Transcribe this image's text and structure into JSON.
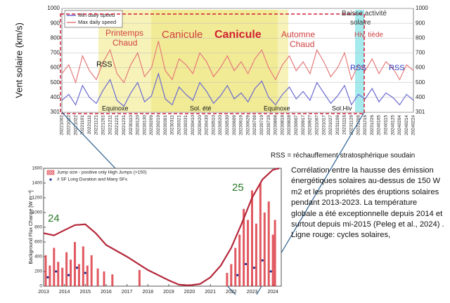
{
  "chart_data": [
    {
      "type": "line",
      "y_label": "Vent solaire (km/s)",
      "categories": [
        "20221002",
        "20221012",
        "20221022",
        "20221101",
        "20221111",
        "20221121",
        "20221201",
        "20221211",
        "20221221",
        "20221231",
        "20230110",
        "20230120",
        "20230130",
        "20230209",
        "20230219",
        "20230301",
        "20230311",
        "20230321",
        "20230331",
        "20230410",
        "20230420",
        "20230430",
        "20230510",
        "20230520",
        "20230530",
        "20230609",
        "20230619",
        "20230629",
        "20230709",
        "20230719",
        "20230729",
        "20230808",
        "20230818",
        "20230828",
        "20230907",
        "20230917",
        "20230927",
        "20231007",
        "20231017",
        "20231027",
        "20231106",
        "20231116",
        "20231126",
        "20231206",
        "20231216",
        "20231226",
        "20240105",
        "20240115",
        "20240125",
        "20240204",
        "20240214",
        "20240224"
      ],
      "series": [
        {
          "name": "Min daily speed",
          "color": "#6a6ad0",
          "values": [
            380,
            420,
            350,
            480,
            400,
            360,
            450,
            520,
            380,
            340,
            430,
            500,
            370,
            410,
            560,
            390,
            350,
            470,
            420,
            380,
            500,
            440,
            360,
            410,
            480,
            390,
            430,
            370,
            460,
            510,
            400,
            350,
            420,
            470,
            390,
            440,
            380,
            500,
            430,
            360,
            410,
            480,
            350,
            420,
            390,
            460,
            370,
            430,
            400,
            350,
            420,
            380
          ]
        },
        {
          "name": "Max daily speed",
          "color": "#e57a7a",
          "values": [
            560,
            620,
            500,
            680,
            580,
            520,
            640,
            720,
            560,
            500,
            620,
            700,
            540,
            600,
            780,
            580,
            520,
            660,
            620,
            560,
            700,
            640,
            540,
            600,
            680,
            580,
            640,
            560,
            660,
            720,
            600,
            520,
            620,
            680,
            580,
            640,
            560,
            720,
            640,
            540,
            600,
            700,
            520,
            620,
            580,
            660,
            560,
            640,
            600,
            520,
            620,
            580
          ]
        }
      ],
      "ylim": [
        300,
        1000
      ],
      "yticks": [
        301,
        400,
        500,
        600,
        700,
        800,
        900,
        1000
      ],
      "grid": true,
      "legend": "top-left",
      "annotations": [
        [
          "Printemps",
          "Chaud"
        ],
        [
          "Canicule"
        ],
        [
          "Canicule"
        ],
        [
          "Automne",
          "Chaud"
        ],
        [
          "Baisse activité",
          "solaire"
        ],
        [
          "Hiv. tiède"
        ],
        [
          "RSS"
        ],
        [
          "RSS"
        ],
        [
          "RSS"
        ],
        [
          "Equinoxe"
        ],
        [
          "Sol. été"
        ],
        [
          "Equinoxe"
        ],
        [
          "Sol.Hiv"
        ]
      ],
      "note": "RSS = réchauffement stratosphérique soudain"
    },
    {
      "type": "bar",
      "y_label": "Background Flux Change [W m⁻²]",
      "xlim": [
        2013,
        2024.4
      ],
      "xticks": [
        2013,
        2014,
        2015,
        2016,
        2017,
        2018,
        2019,
        2020,
        2021,
        2022,
        2023,
        2024
      ],
      "ylim": [
        0,
        1600
      ],
      "yticks": [
        0,
        200,
        400,
        600,
        800,
        1000,
        1200,
        1400,
        1600
      ],
      "legend": "top-left",
      "series": [
        {
          "name": "Jump size - positive only High Jumps (>150)",
          "type": "bar",
          "color": "#d9303a",
          "x": [
            2013.1,
            2013.3,
            2013.5,
            2013.7,
            2013.9,
            2014.1,
            2014.3,
            2014.5,
            2014.7,
            2014.9,
            2015.1,
            2015.3,
            2015.6,
            2015.9,
            2016.3,
            2017.6,
            2021.8,
            2022.0,
            2022.2,
            2022.4,
            2022.6,
            2022.8,
            2023.0,
            2023.2,
            2023.4,
            2023.6,
            2023.8,
            2024.0,
            2024.1
          ],
          "values": [
            420,
            280,
            520,
            330,
            250,
            460,
            360,
            600,
            300,
            540,
            280,
            420,
            240,
            200,
            160,
            220,
            180,
            300,
            520,
            700,
            1050,
            900,
            1300,
            850,
            1400,
            1000,
            1150,
            700,
            900
          ]
        },
        {
          "name": "# SF Long Duration and Many SFs",
          "type": "scatter",
          "color": "#1f2f8a",
          "x": [
            2013.2,
            2013.6,
            2014.2,
            2014.6,
            2015.0,
            2022.3,
            2022.7,
            2023.1,
            2023.5,
            2023.9
          ],
          "values": [
            120,
            200,
            150,
            250,
            180,
            150,
            300,
            250,
            350,
            200
          ]
        },
        {
          "type": "line",
          "color": "#b5283a",
          "x": [
            2013,
            2013.5,
            2014,
            2014.5,
            2015,
            2015.5,
            2016,
            2017,
            2018,
            2019,
            2019.5,
            2020,
            2020.5,
            2021,
            2021.5,
            2022,
            2022.5,
            2023,
            2023.5,
            2024,
            2024.3
          ],
          "values": [
            720,
            690,
            760,
            830,
            840,
            720,
            560,
            400,
            220,
            80,
            20,
            10,
            30,
            120,
            280,
            520,
            850,
            1200,
            1450,
            1580,
            1600
          ]
        }
      ],
      "annotations": [
        "24",
        "25"
      ],
      "caption": "Corrélation entre la hausse des émission énergétiques solaires au-dessus de 150 W m2 et les propriétés des éruptions solaires pendant 2013-2023. La température globale a été exceptionnelle depuis 2014 et surtout depuis mi-2015 (Peleg et al., 2024) . Ligne rouge: cycles solaires,"
    }
  ]
}
